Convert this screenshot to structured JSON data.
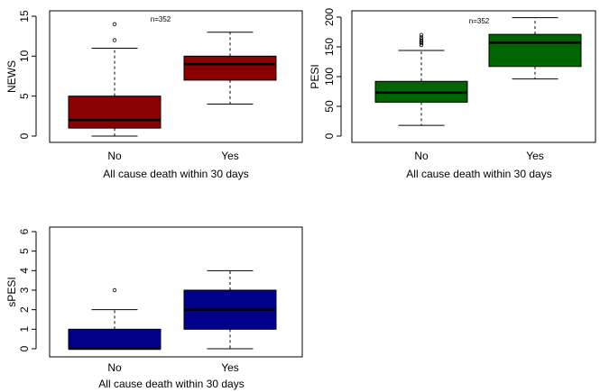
{
  "chart_data": [
    {
      "type": "box",
      "ylabel": "NEWS",
      "xlabel": "All cause death within 30 days",
      "annotation": "n=352",
      "ylim": [
        0,
        15
      ],
      "yticks": [
        0,
        5,
        10,
        15
      ],
      "categories": [
        "No",
        "Yes"
      ],
      "fill": "#8b0000",
      "boxes": [
        {
          "category": "No",
          "min": 0,
          "q1": 1,
          "median": 2,
          "q3": 5,
          "max": 11,
          "outliers": [
            12,
            14
          ]
        },
        {
          "category": "Yes",
          "min": 4,
          "q1": 7,
          "median": 9,
          "q3": 10,
          "max": 13,
          "outliers": []
        }
      ]
    },
    {
      "type": "box",
      "ylabel": "PESI",
      "xlabel": "All cause death within 30 days",
      "annotation": "n=352",
      "ylim": [
        0,
        200
      ],
      "yticks": [
        0,
        50,
        100,
        150,
        200
      ],
      "categories": [
        "No",
        "Yes"
      ],
      "fill": "#006400",
      "boxes": [
        {
          "category": "No",
          "min": 18,
          "q1": 57,
          "median": 73,
          "q3": 92,
          "max": 144,
          "outliers": [
            153,
            156,
            158,
            160,
            163,
            166,
            170
          ]
        },
        {
          "category": "Yes",
          "min": 96,
          "q1": 117,
          "median": 157,
          "q3": 171,
          "max": 199,
          "outliers": []
        }
      ]
    },
    {
      "type": "box",
      "ylabel": "sPESI",
      "xlabel": "All cause death within 30 days",
      "annotation": "",
      "ylim": [
        0,
        6
      ],
      "yticks": [
        0,
        1,
        2,
        3,
        4,
        5,
        6
      ],
      "categories": [
        "No",
        "Yes"
      ],
      "fill": "#00008b",
      "boxes": [
        {
          "category": "No",
          "min": 0,
          "q1": 0,
          "median": 0,
          "q3": 1,
          "max": 2,
          "outliers": [
            3
          ]
        },
        {
          "category": "Yes",
          "min": 0,
          "q1": 1,
          "median": 2,
          "q3": 3,
          "max": 4,
          "outliers": []
        }
      ]
    }
  ]
}
